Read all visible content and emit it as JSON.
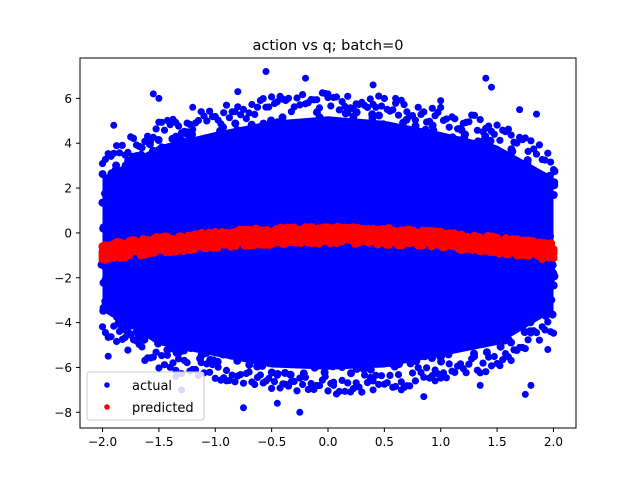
{
  "chart_data": {
    "type": "scatter",
    "title": "action vs q; batch=0",
    "xlabel": "",
    "ylabel": "",
    "xlim": [
      -2.2,
      2.2
    ],
    "ylim": [
      -8.7,
      7.8
    ],
    "x_ticks": [
      -2.0,
      -1.5,
      -1.0,
      -0.5,
      0.0,
      0.5,
      1.0,
      1.5,
      2.0
    ],
    "x_tick_labels": [
      "−2.0",
      "−1.5",
      "−1.0",
      "−0.5",
      "0.0",
      "0.5",
      "1.0",
      "1.5",
      "2.0"
    ],
    "y_ticks": [
      -8,
      -6,
      -4,
      -2,
      0,
      2,
      4,
      6
    ],
    "y_tick_labels": [
      "−8",
      "−6",
      "−4",
      "−2",
      "0",
      "2",
      "4",
      "6"
    ],
    "grid": false,
    "legend": {
      "placement": "lower-left"
    },
    "series": [
      {
        "name": "actual",
        "color": "#0000ff",
        "marker": "dot",
        "x_range": [
          -2.0,
          2.0
        ],
        "center_curve": {
          "x": [
            -2.0,
            -1.5,
            -1.0,
            -0.5,
            0.0,
            0.5,
            1.0,
            1.5,
            2.0
          ],
          "y": [
            -0.8,
            -0.5,
            -0.25,
            -0.1,
            -0.05,
            -0.1,
            -0.25,
            -0.5,
            -0.8
          ]
        },
        "band_upper": {
          "x": [
            -2.0,
            -1.5,
            -1.0,
            -0.5,
            0.0,
            0.5,
            1.0,
            1.5,
            2.0
          ],
          "y": [
            2.8,
            4.2,
            4.8,
            5.3,
            5.5,
            5.3,
            4.8,
            4.2,
            2.8
          ]
        },
        "band_lower": {
          "x": [
            -2.0,
            -1.5,
            -1.0,
            -0.5,
            0.0,
            0.5,
            1.0,
            1.5,
            2.0
          ],
          "y": [
            -3.8,
            -5.3,
            -5.8,
            -6.3,
            -6.4,
            -6.3,
            -5.8,
            -5.3,
            -3.8
          ]
        },
        "outliers": [
          {
            "x": -0.55,
            "y": 7.2
          },
          {
            "x": -0.2,
            "y": 6.9
          },
          {
            "x": 0.4,
            "y": 6.6
          },
          {
            "x": -1.55,
            "y": 6.2
          },
          {
            "x": -1.5,
            "y": 6.0
          },
          {
            "x": 1.4,
            "y": 6.9
          },
          {
            "x": 1.45,
            "y": 6.5
          },
          {
            "x": 0.0,
            "y": 6.2
          },
          {
            "x": 0.6,
            "y": 6.0
          },
          {
            "x": -1.2,
            "y": 5.6
          },
          {
            "x": 1.0,
            "y": 5.9
          },
          {
            "x": 1.85,
            "y": 5.3
          },
          {
            "x": -1.9,
            "y": 4.8
          },
          {
            "x": 1.7,
            "y": 5.5
          },
          {
            "x": -0.8,
            "y": 6.3
          },
          {
            "x": -0.25,
            "y": -8.0
          },
          {
            "x": -0.75,
            "y": -7.8
          },
          {
            "x": -0.45,
            "y": -7.6
          },
          {
            "x": 0.4,
            "y": -7.0
          },
          {
            "x": -1.3,
            "y": -7.0
          },
          {
            "x": 0.85,
            "y": -7.3
          },
          {
            "x": 0.65,
            "y": -7.0
          },
          {
            "x": -0.9,
            "y": -6.6
          },
          {
            "x": 1.75,
            "y": -7.2
          },
          {
            "x": 1.8,
            "y": -6.8
          },
          {
            "x": 1.35,
            "y": -6.8
          },
          {
            "x": -1.35,
            "y": -6.4
          },
          {
            "x": 0.05,
            "y": -6.8
          },
          {
            "x": 0.95,
            "y": -6.6
          },
          {
            "x": -1.95,
            "y": -5.5
          },
          {
            "x": 1.95,
            "y": -5.2
          }
        ]
      },
      {
        "name": "predicted",
        "color": "#ff0000",
        "marker": "dot",
        "x_range": [
          -2.0,
          2.0
        ],
        "center_curve": {
          "x": [
            -2.0,
            -1.5,
            -1.0,
            -0.5,
            0.0,
            0.5,
            1.0,
            1.5,
            2.0
          ],
          "y": [
            -0.85,
            -0.55,
            -0.3,
            -0.15,
            -0.1,
            -0.15,
            -0.3,
            -0.55,
            -0.85
          ]
        },
        "half_width": 0.38
      }
    ]
  }
}
